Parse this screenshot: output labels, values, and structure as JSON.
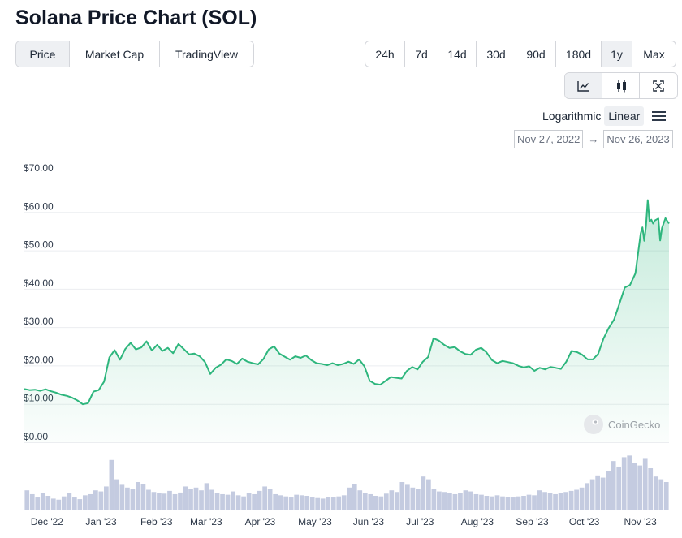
{
  "page": {
    "title": "Solana Price Chart (SOL)"
  },
  "tabs": [
    {
      "label": "Price",
      "active": true
    },
    {
      "label": "Market Cap",
      "active": false
    },
    {
      "label": "TradingView",
      "active": false
    }
  ],
  "ranges": [
    {
      "label": "24h",
      "active": false
    },
    {
      "label": "7d",
      "active": false
    },
    {
      "label": "14d",
      "active": false
    },
    {
      "label": "30d",
      "active": false
    },
    {
      "label": "90d",
      "active": false
    },
    {
      "label": "180d",
      "active": false
    },
    {
      "label": "1y",
      "active": true
    },
    {
      "label": "Max",
      "active": false
    }
  ],
  "chart_types": [
    {
      "icon": "line-chart-icon",
      "active": true
    },
    {
      "icon": "candlestick-icon",
      "active": false
    },
    {
      "icon": "fullscreen-icon",
      "active": false
    }
  ],
  "scale": {
    "options": [
      "Logarithmic",
      "Linear"
    ],
    "selected": "Linear"
  },
  "date_range": {
    "from": "Nov 27, 2022",
    "arrow": "→",
    "to": "Nov 26, 2023"
  },
  "watermark": "CoinGecko",
  "colors": {
    "line": "#2eb67d",
    "volume": "#c4cbe0",
    "grid": "#ebedf0",
    "axis_text": "#2f3a4a"
  },
  "chart_data": {
    "type": "line",
    "title": "",
    "ylabel": "",
    "xlabel": "",
    "y_scale": "linear",
    "ylim": [
      0,
      70
    ],
    "y_ticks": [
      "$0.00",
      "$10.00",
      "$20.00",
      "$30.00",
      "$40.00",
      "$50.00",
      "$60.00",
      "$70.00"
    ],
    "y_tick_values": [
      0,
      10,
      20,
      30,
      40,
      50,
      60,
      70
    ],
    "x_range": [
      "2022-11-27",
      "2023-11-26"
    ],
    "x_ticks": [
      {
        "label": "Dec '22",
        "date": "2022-12-01"
      },
      {
        "label": "Jan '23",
        "date": "2023-01-01"
      },
      {
        "label": "Feb '23",
        "date": "2023-02-01"
      },
      {
        "label": "Mar '23",
        "date": "2023-03-01"
      },
      {
        "label": "Apr '23",
        "date": "2023-04-01"
      },
      {
        "label": "May '23",
        "date": "2023-05-01"
      },
      {
        "label": "Jun '23",
        "date": "2023-06-01"
      },
      {
        "label": "Jul '23",
        "date": "2023-07-01"
      },
      {
        "label": "Aug '23",
        "date": "2023-08-01"
      },
      {
        "label": "Sep '23",
        "date": "2023-09-01"
      },
      {
        "label": "Oct '23",
        "date": "2023-10-01"
      },
      {
        "label": "Nov '23",
        "date": "2023-11-01"
      }
    ],
    "grid": true,
    "series": [
      {
        "values_usd": [
          [
            "2022-11-27",
            13.9
          ],
          [
            "2022-11-30",
            13.6
          ],
          [
            "2022-12-03",
            13.7
          ],
          [
            "2022-12-06",
            13.4
          ],
          [
            "2022-12-09",
            13.8
          ],
          [
            "2022-12-12",
            13.3
          ],
          [
            "2022-12-15",
            12.9
          ],
          [
            "2022-12-18",
            12.4
          ],
          [
            "2022-12-21",
            12.1
          ],
          [
            "2022-12-24",
            11.6
          ],
          [
            "2022-12-27",
            10.9
          ],
          [
            "2022-12-30",
            9.9
          ],
          [
            "2023-01-02",
            10.2
          ],
          [
            "2023-01-05",
            13.2
          ],
          [
            "2023-01-08",
            13.6
          ],
          [
            "2023-01-11",
            15.8
          ],
          [
            "2023-01-14",
            22.1
          ],
          [
            "2023-01-17",
            24.0
          ],
          [
            "2023-01-20",
            21.5
          ],
          [
            "2023-01-23",
            24.3
          ],
          [
            "2023-01-26",
            25.9
          ],
          [
            "2023-01-29",
            24.2
          ],
          [
            "2023-02-01",
            24.7
          ],
          [
            "2023-02-04",
            26.3
          ],
          [
            "2023-02-07",
            23.9
          ],
          [
            "2023-02-10",
            25.4
          ],
          [
            "2023-02-13",
            23.8
          ],
          [
            "2023-02-16",
            24.6
          ],
          [
            "2023-02-19",
            23.2
          ],
          [
            "2023-02-22",
            25.6
          ],
          [
            "2023-02-25",
            24.3
          ],
          [
            "2023-02-28",
            22.9
          ],
          [
            "2023-03-03",
            23.1
          ],
          [
            "2023-03-06",
            22.4
          ],
          [
            "2023-03-09",
            20.9
          ],
          [
            "2023-03-12",
            17.8
          ],
          [
            "2023-03-15",
            19.4
          ],
          [
            "2023-03-18",
            20.2
          ],
          [
            "2023-03-21",
            21.6
          ],
          [
            "2023-03-24",
            21.2
          ],
          [
            "2023-03-27",
            20.4
          ],
          [
            "2023-03-30",
            21.8
          ],
          [
            "2023-04-02",
            21.0
          ],
          [
            "2023-04-05",
            20.6
          ],
          [
            "2023-04-08",
            20.3
          ],
          [
            "2023-04-11",
            21.7
          ],
          [
            "2023-04-14",
            24.2
          ],
          [
            "2023-04-17",
            25.0
          ],
          [
            "2023-04-20",
            23.1
          ],
          [
            "2023-04-23",
            22.3
          ],
          [
            "2023-04-26",
            21.5
          ],
          [
            "2023-04-29",
            22.4
          ],
          [
            "2023-05-02",
            22.0
          ],
          [
            "2023-05-05",
            22.6
          ],
          [
            "2023-05-08",
            21.4
          ],
          [
            "2023-05-11",
            20.6
          ],
          [
            "2023-05-14",
            20.4
          ],
          [
            "2023-05-17",
            20.1
          ],
          [
            "2023-05-20",
            20.6
          ],
          [
            "2023-05-23",
            20.1
          ],
          [
            "2023-05-26",
            20.4
          ],
          [
            "2023-05-29",
            21.0
          ],
          [
            "2023-06-01",
            20.4
          ],
          [
            "2023-06-04",
            21.6
          ],
          [
            "2023-06-07",
            19.8
          ],
          [
            "2023-06-10",
            16.0
          ],
          [
            "2023-06-13",
            15.2
          ],
          [
            "2023-06-16",
            15.0
          ],
          [
            "2023-06-19",
            16.0
          ],
          [
            "2023-06-22",
            17.0
          ],
          [
            "2023-06-25",
            16.8
          ],
          [
            "2023-06-28",
            16.6
          ],
          [
            "2023-07-01",
            18.6
          ],
          [
            "2023-07-04",
            19.6
          ],
          [
            "2023-07-07",
            19.0
          ],
          [
            "2023-07-10",
            21.0
          ],
          [
            "2023-07-13",
            22.2
          ],
          [
            "2023-07-16",
            27.1
          ],
          [
            "2023-07-19",
            26.5
          ],
          [
            "2023-07-22",
            25.4
          ],
          [
            "2023-07-25",
            24.6
          ],
          [
            "2023-07-28",
            24.8
          ],
          [
            "2023-07-31",
            23.7
          ],
          [
            "2023-08-03",
            23.0
          ],
          [
            "2023-08-06",
            22.8
          ],
          [
            "2023-08-09",
            24.1
          ],
          [
            "2023-08-12",
            24.6
          ],
          [
            "2023-08-15",
            23.4
          ],
          [
            "2023-08-18",
            21.4
          ],
          [
            "2023-08-21",
            20.6
          ],
          [
            "2023-08-24",
            21.2
          ],
          [
            "2023-08-27",
            20.9
          ],
          [
            "2023-08-30",
            20.6
          ],
          [
            "2023-09-02",
            19.9
          ],
          [
            "2023-09-05",
            19.5
          ],
          [
            "2023-09-08",
            19.8
          ],
          [
            "2023-09-11",
            18.6
          ],
          [
            "2023-09-14",
            19.4
          ],
          [
            "2023-09-17",
            19.0
          ],
          [
            "2023-09-20",
            19.6
          ],
          [
            "2023-09-23",
            19.4
          ],
          [
            "2023-09-26",
            19.1
          ],
          [
            "2023-09-29",
            21.0
          ],
          [
            "2023-10-02",
            23.8
          ],
          [
            "2023-10-05",
            23.5
          ],
          [
            "2023-10-08",
            22.8
          ],
          [
            "2023-10-11",
            21.6
          ],
          [
            "2023-10-14",
            21.6
          ],
          [
            "2023-10-17",
            23.0
          ],
          [
            "2023-10-20",
            27.0
          ],
          [
            "2023-10-23",
            29.8
          ],
          [
            "2023-10-26",
            32.0
          ],
          [
            "2023-10-29",
            36.1
          ],
          [
            "2023-11-01",
            40.3
          ],
          [
            "2023-11-04",
            41.0
          ],
          [
            "2023-11-07",
            44.0
          ],
          [
            "2023-11-10",
            54.4
          ],
          [
            "2023-11-11",
            56.0
          ],
          [
            "2023-11-12",
            52.5
          ],
          [
            "2023-11-13",
            56.3
          ],
          [
            "2023-11-14",
            63.1
          ],
          [
            "2023-11-15",
            57.6
          ],
          [
            "2023-11-16",
            58.0
          ],
          [
            "2023-11-17",
            57.0
          ],
          [
            "2023-11-18",
            57.8
          ],
          [
            "2023-11-20",
            58.3
          ],
          [
            "2023-11-21",
            52.6
          ],
          [
            "2023-11-22",
            55.8
          ],
          [
            "2023-11-24",
            58.4
          ],
          [
            "2023-11-26",
            57.0
          ]
        ]
      }
    ],
    "volume_relative": [
      0.35,
      0.28,
      0.22,
      0.3,
      0.25,
      0.2,
      0.18,
      0.24,
      0.3,
      0.22,
      0.19,
      0.26,
      0.28,
      0.35,
      0.33,
      0.42,
      0.9,
      0.55,
      0.45,
      0.4,
      0.38,
      0.5,
      0.47,
      0.36,
      0.32,
      0.3,
      0.29,
      0.34,
      0.28,
      0.31,
      0.42,
      0.37,
      0.4,
      0.35,
      0.48,
      0.36,
      0.3,
      0.28,
      0.27,
      0.33,
      0.26,
      0.24,
      0.3,
      0.28,
      0.34,
      0.42,
      0.38,
      0.28,
      0.26,
      0.24,
      0.22,
      0.27,
      0.26,
      0.25,
      0.22,
      0.21,
      0.2,
      0.23,
      0.22,
      0.24,
      0.26,
      0.4,
      0.46,
      0.35,
      0.3,
      0.28,
      0.25,
      0.24,
      0.29,
      0.35,
      0.32,
      0.5,
      0.45,
      0.4,
      0.38,
      0.6,
      0.55,
      0.38,
      0.33,
      0.32,
      0.3,
      0.28,
      0.3,
      0.35,
      0.33,
      0.28,
      0.27,
      0.25,
      0.24,
      0.26,
      0.24,
      0.23,
      0.22,
      0.24,
      0.25,
      0.27,
      0.26,
      0.35,
      0.32,
      0.3,
      0.28,
      0.3,
      0.32,
      0.34,
      0.36,
      0.4,
      0.48,
      0.55,
      0.62,
      0.58,
      0.7,
      0.88,
      0.78,
      0.95,
      0.98,
      0.85,
      0.8,
      0.92,
      0.75,
      0.6,
      0.55,
      0.5
    ]
  }
}
